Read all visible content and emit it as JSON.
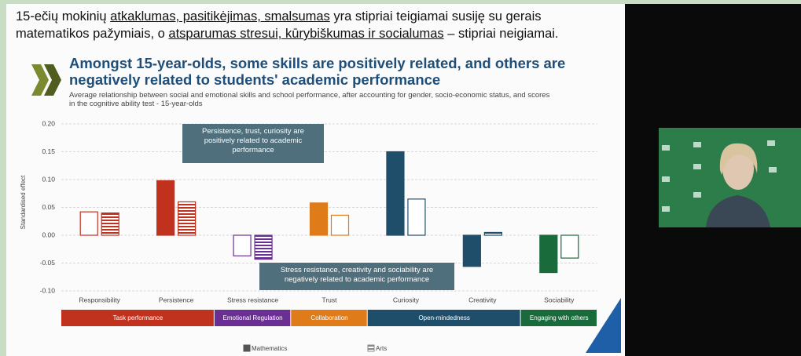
{
  "header": {
    "lines": [
      [
        {
          "text": "15-ečių mokinių ",
          "underline": false
        },
        {
          "text": "atkaklumas, pasitikėjimas, smalsumas",
          "underline": true
        },
        {
          "text": " yra stipriai teigiamai susiję su gerais",
          "underline": false
        }
      ],
      [
        {
          "text": "matematikos pažymiais, o ",
          "underline": false
        },
        {
          "text": "atsparumas stresui, kūrybiškumas ir socialumas",
          "underline": true
        },
        {
          "text": " – stipriai neigiamai.",
          "underline": false
        }
      ]
    ]
  },
  "chart_data": {
    "type": "bar",
    "title": "Amongst 15-year-olds, some skills are positively related, and others are negatively related to students' academic performance",
    "subtitle": "Average relationship between social and emotional skills and school performance, after accounting for gender, socio-economic status, and scores in the cognitive ability test - 15-year-olds",
    "ylabel": "Standardised effect",
    "categories": [
      "Responsibility",
      "Persistence",
      "Stress resistance",
      "Trust",
      "Curiosity",
      "Creativity",
      "Sociability"
    ],
    "category_colors": [
      "#c0311e",
      "#c0311e",
      "#6a2f93",
      "#e07b1a",
      "#1f4e6b",
      "#1f4e6b",
      "#1a6b3c"
    ],
    "series": [
      {
        "name": "Mathematics",
        "color": "#555555",
        "pattern": "solid",
        "values": [
          0.042,
          0.098,
          -0.037,
          0.058,
          0.15,
          -0.056,
          -0.067
        ],
        "filled": [
          false,
          true,
          false,
          true,
          true,
          true,
          true
        ]
      },
      {
        "name": "Arts",
        "color": "#888888",
        "pattern": "hatch",
        "values": [
          0.04,
          0.06,
          -0.043,
          0.036,
          0.065,
          0.005,
          -0.041
        ],
        "filled": [
          true,
          true,
          true,
          false,
          false,
          true,
          false
        ]
      }
    ],
    "groups": [
      {
        "name": "Task performance",
        "span": 2,
        "color": "#c0311e"
      },
      {
        "name": "Emotional Regulation",
        "span": 1,
        "color": "#6a2f93"
      },
      {
        "name": "Collaboration",
        "span": 1,
        "color": "#e07b1a"
      },
      {
        "name": "Open-mindedness",
        "span": 2,
        "color": "#1f4e6b"
      },
      {
        "name": "Engaging with others",
        "span": 1,
        "color": "#1a6b3c"
      }
    ],
    "annotations": [
      {
        "text": "Persistence, trust, curiosity are positively related to academic performance"
      },
      {
        "text": "Stress resistance, creativity and sociability are negatively related to academic performance"
      }
    ],
    "ylim": [
      -0.1,
      0.2
    ],
    "yticks": [
      {
        "value": 0.2,
        "label": "0.20"
      },
      {
        "value": 0.15,
        "label": "0.15"
      },
      {
        "value": 0.1,
        "label": "0.10"
      },
      {
        "value": 0.05,
        "label": "0.05"
      },
      {
        "value": 0,
        "label": "0.00"
      },
      {
        "value": -0.05,
        "label": "-0.05"
      },
      {
        "value": -0.1,
        "label": "-0.10"
      }
    ],
    "grid": true
  }
}
